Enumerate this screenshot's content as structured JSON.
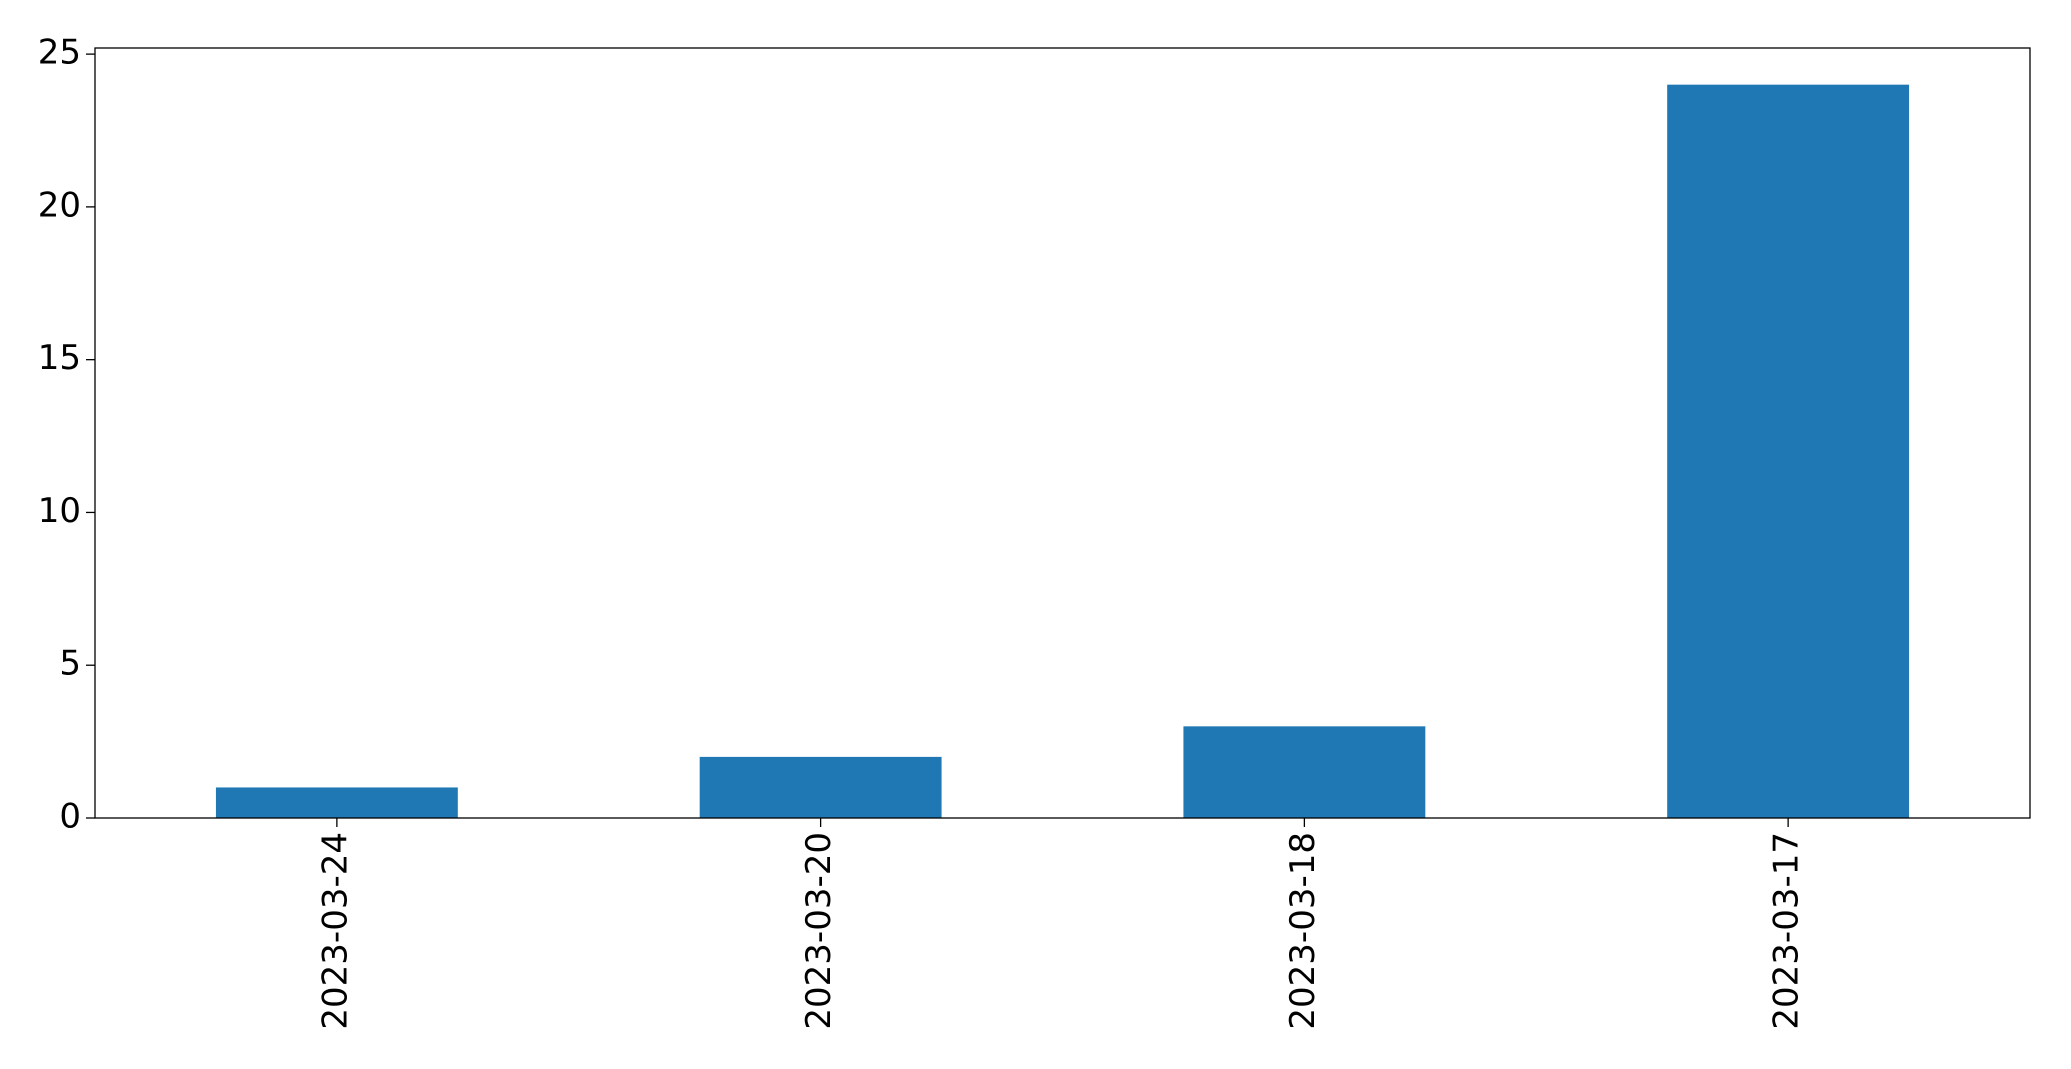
{
  "chart_data": {
    "type": "bar",
    "categories": [
      "2023-03-24",
      "2023-03-20",
      "2023-03-18",
      "2023-03-17"
    ],
    "values": [
      1,
      2,
      3,
      24
    ],
    "color": "#1f77b4",
    "ylim": [
      0,
      25.2
    ],
    "yticks": [
      0,
      5,
      10,
      15,
      20,
      25
    ],
    "grid": false
  }
}
